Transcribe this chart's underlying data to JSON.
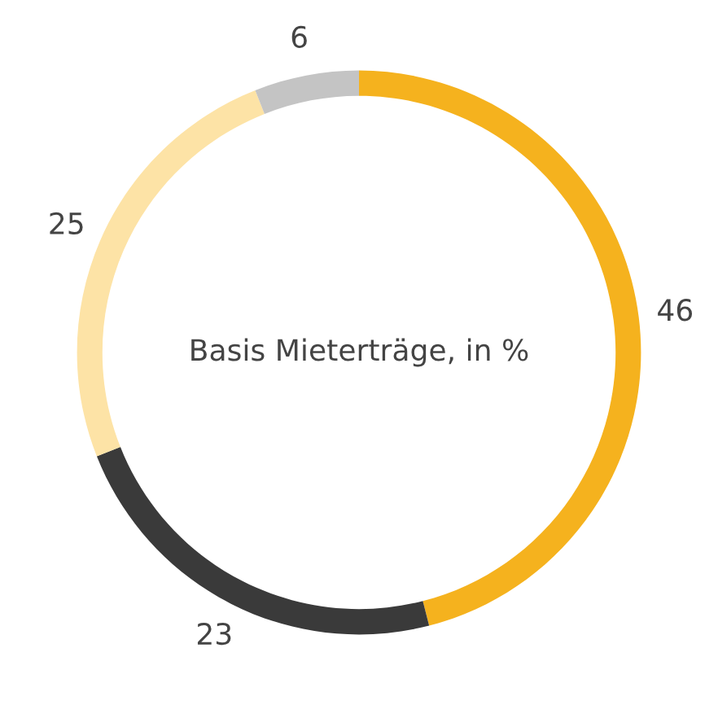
{
  "chart_data": {
    "type": "donut",
    "title": "Basis Mieterträge, in %",
    "categories": [
      null,
      null,
      null,
      null
    ],
    "values": [
      46,
      23,
      25,
      6
    ],
    "colors": [
      "#f5b21e",
      "#3a3a3a",
      "#fde3a6",
      "#c4c4c4"
    ],
    "data_labels": true
  }
}
